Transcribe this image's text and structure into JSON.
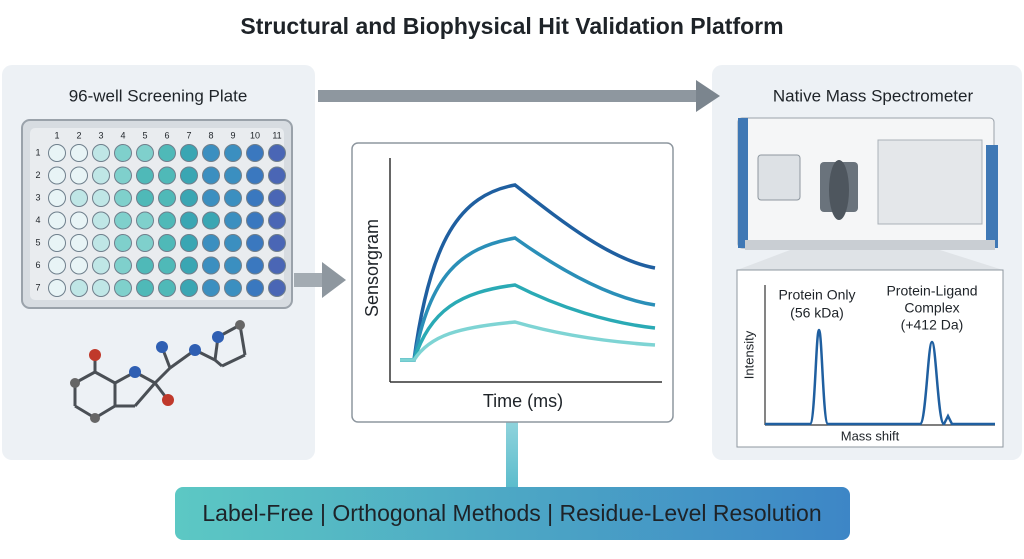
{
  "title": "Structural and Biophysical Hit Validation Platform",
  "plate": {
    "label": "96-well Screening Plate",
    "columns": [
      1,
      2,
      3,
      4,
      5,
      6,
      7,
      8,
      9,
      10,
      11
    ],
    "rows": [
      1,
      2,
      3,
      4,
      5,
      6,
      7
    ]
  },
  "sensorgram": {
    "y_label": "Sensorgram",
    "x_label": "Time (ms)"
  },
  "mass_spec": {
    "label": "Native Mass Spectrometer",
    "y_label": "Intensity",
    "x_label": "Mass shift",
    "peak1": [
      "Protein Only",
      "(56 kDa)"
    ],
    "peak2": [
      "Protein-Ligand",
      "Complex",
      "(+412 Da)"
    ]
  },
  "banner": "Label-Free | Orthogonal Methods | Residue-Level Resolution"
}
